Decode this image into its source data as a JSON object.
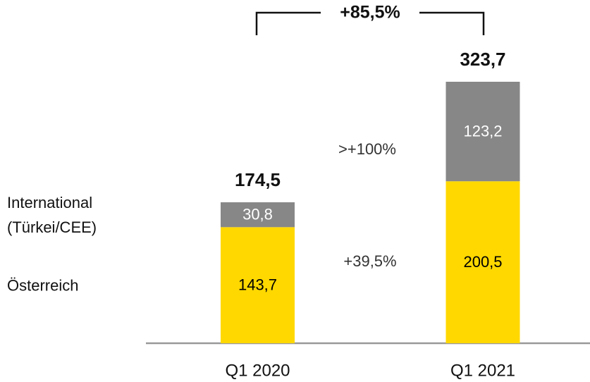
{
  "chart_data": {
    "type": "stacked_bar",
    "categories": [
      "Q1 2020",
      "Q1 2021"
    ],
    "series": [
      {
        "name": "Österreich",
        "color": "#ffd800",
        "label_color": "#000000",
        "values": [
          143.7,
          200.5
        ],
        "value_labels": [
          "143,7",
          "200,5"
        ]
      },
      {
        "name": "International (Türkei/CEE)",
        "color": "#878787",
        "label_color": "#ffffff",
        "values": [
          30.8,
          123.2
        ],
        "value_labels": [
          "30,8",
          "123,2"
        ]
      }
    ],
    "totals": [
      174.5,
      323.7
    ],
    "totals_labels": [
      "174,5",
      "323,7"
    ],
    "annotations": {
      "total_change": "+85,5%",
      "international_change": ">+100%",
      "austria_change": "+39,5%"
    }
  }
}
